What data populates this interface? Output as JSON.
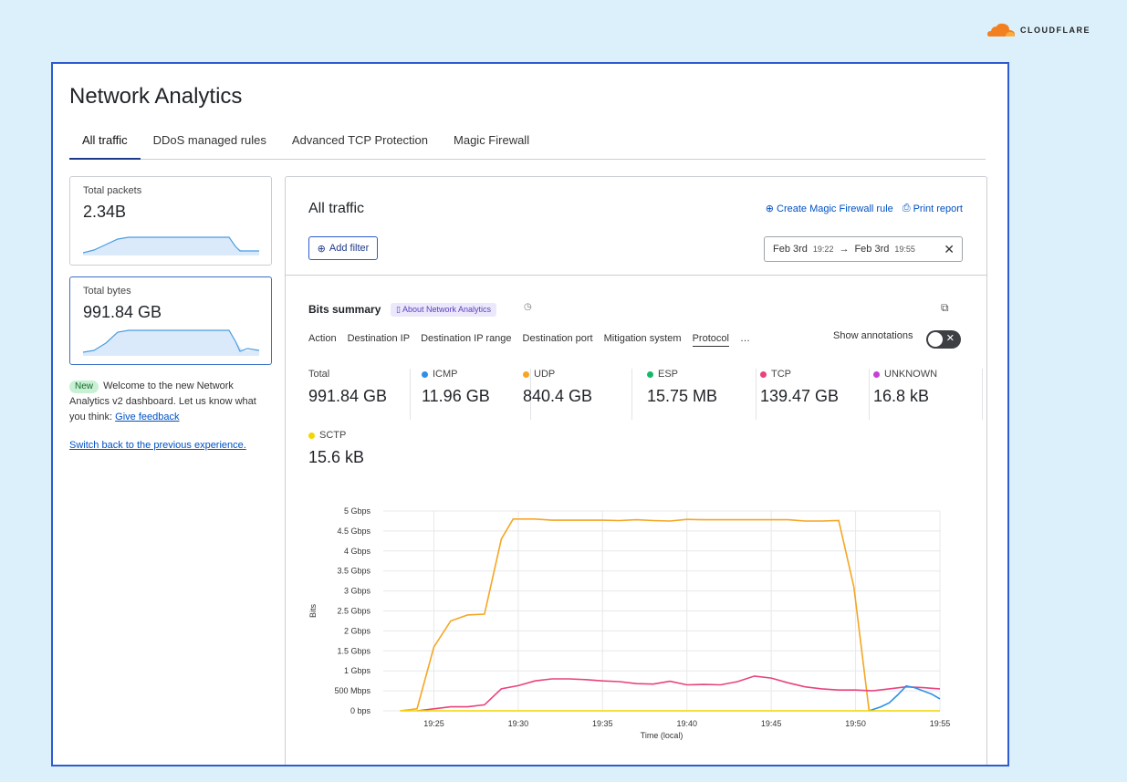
{
  "brand": {
    "name": "CLOUDFLARE",
    "color": "#f38020"
  },
  "page": {
    "title": "Network Analytics"
  },
  "tabs": [
    "All traffic",
    "DDoS managed rules",
    "Advanced TCP Protection",
    "Magic Firewall"
  ],
  "side": {
    "packets": {
      "label": "Total packets",
      "value": "2.34B"
    },
    "bytes": {
      "label": "Total bytes",
      "value": "991.84 GB"
    },
    "welcome": {
      "badge": "New",
      "text": "Welcome to the new Network Analytics v2 dashboard. Let us know what you think:",
      "feedback_link": "Give feedback"
    },
    "switch_back": "Switch back to the previous experience."
  },
  "main": {
    "title": "All traffic",
    "create_rule": "Create Magic Firewall rule",
    "print_report": "Print report",
    "add_filter": "Add filter",
    "date_from": "Feb 3rd",
    "time_from": "19:22",
    "date_to": "Feb 3rd",
    "time_to": "19:55",
    "bits_summary": "Bits summary",
    "about": "About Network Analytics",
    "subtabs": [
      "Action",
      "Destination IP",
      "Destination IP range",
      "Destination port",
      "Mitigation system",
      "Protocol",
      "…"
    ],
    "show_annotations": "Show annotations",
    "stats": [
      {
        "label": "Total",
        "value": "991.84 GB",
        "color": ""
      },
      {
        "label": "ICMP",
        "value": "11.96 GB",
        "color": "#2f8fe8"
      },
      {
        "label": "UDP",
        "value": "840.4 GB",
        "color": "#f5a623"
      },
      {
        "label": "ESP",
        "value": "15.75 MB",
        "color": "#15b86a"
      },
      {
        "label": "TCP",
        "value": "139.47 GB",
        "color": "#e8437e"
      },
      {
        "label": "UNKNOWN",
        "value": "16.8 kB",
        "color": "#c640d8"
      },
      {
        "label": "SCTP",
        "value": "15.6 kB",
        "color": "#f2d600"
      }
    ]
  },
  "chart_data": {
    "type": "line",
    "xlabel": "Time (local)",
    "ylabel": "Bits",
    "x_ticks": [
      "19:25",
      "19:30",
      "19:35",
      "19:40",
      "19:45",
      "19:50",
      "19:55"
    ],
    "y_ticks": [
      "0 bps",
      "500 Mbps",
      "1 Gbps",
      "1.5 Gbps",
      "2 Gbps",
      "2.5 Gbps",
      "3 Gbps",
      "3.5 Gbps",
      "4 Gbps",
      "4.5 Gbps",
      "5 Gbps"
    ],
    "xlim": [
      22,
      55
    ],
    "ylim": [
      0,
      5
    ],
    "grid": true,
    "series": [
      {
        "name": "UDP",
        "color": "#f5a623",
        "points": [
          [
            23,
            0
          ],
          [
            24,
            0.05
          ],
          [
            25,
            1.6
          ],
          [
            26,
            2.25
          ],
          [
            27,
            2.4
          ],
          [
            28,
            2.42
          ],
          [
            29,
            4.3
          ],
          [
            29.7,
            4.8
          ],
          [
            31,
            4.8
          ],
          [
            32,
            4.77
          ],
          [
            34,
            4.77
          ],
          [
            35,
            4.77
          ],
          [
            36,
            4.76
          ],
          [
            37,
            4.78
          ],
          [
            38,
            4.76
          ],
          [
            39,
            4.75
          ],
          [
            40,
            4.79
          ],
          [
            41,
            4.78
          ],
          [
            42,
            4.78
          ],
          [
            43,
            4.78
          ],
          [
            44,
            4.78
          ],
          [
            45,
            4.78
          ],
          [
            46,
            4.78
          ],
          [
            47,
            4.75
          ],
          [
            48,
            4.75
          ],
          [
            49,
            4.76
          ],
          [
            49.9,
            3.1
          ],
          [
            50.8,
            0
          ]
        ]
      },
      {
        "name": "TCP",
        "color": "#e8437e",
        "points": [
          [
            24,
            0
          ],
          [
            25,
            0.05
          ],
          [
            26,
            0.1
          ],
          [
            27,
            0.1
          ],
          [
            28,
            0.15
          ],
          [
            29,
            0.55
          ],
          [
            30,
            0.63
          ],
          [
            31,
            0.75
          ],
          [
            32,
            0.8
          ],
          [
            33,
            0.8
          ],
          [
            34,
            0.78
          ],
          [
            35,
            0.75
          ],
          [
            36,
            0.73
          ],
          [
            37,
            0.68
          ],
          [
            38,
            0.67
          ],
          [
            39,
            0.74
          ],
          [
            40,
            0.65
          ],
          [
            41,
            0.66
          ],
          [
            42,
            0.65
          ],
          [
            43,
            0.73
          ],
          [
            44,
            0.87
          ],
          [
            45,
            0.82
          ],
          [
            46,
            0.7
          ],
          [
            47,
            0.6
          ],
          [
            48,
            0.55
          ],
          [
            49,
            0.52
          ],
          [
            50,
            0.52
          ],
          [
            51,
            0.5
          ],
          [
            52,
            0.55
          ],
          [
            53,
            0.6
          ],
          [
            54,
            0.58
          ],
          [
            55,
            0.55
          ]
        ]
      },
      {
        "name": "ICMP",
        "color": "#2f8fe8",
        "points": [
          [
            50.8,
            0.0
          ],
          [
            51.5,
            0.1
          ],
          [
            52,
            0.2
          ],
          [
            52.5,
            0.4
          ],
          [
            53,
            0.62
          ],
          [
            53.5,
            0.58
          ],
          [
            54,
            0.5
          ],
          [
            54.5,
            0.42
          ],
          [
            55,
            0.3
          ]
        ]
      },
      {
        "name": "SCTP",
        "color": "#f2d600",
        "points": [
          [
            23,
            0
          ],
          [
            55,
            0
          ]
        ]
      }
    ]
  }
}
